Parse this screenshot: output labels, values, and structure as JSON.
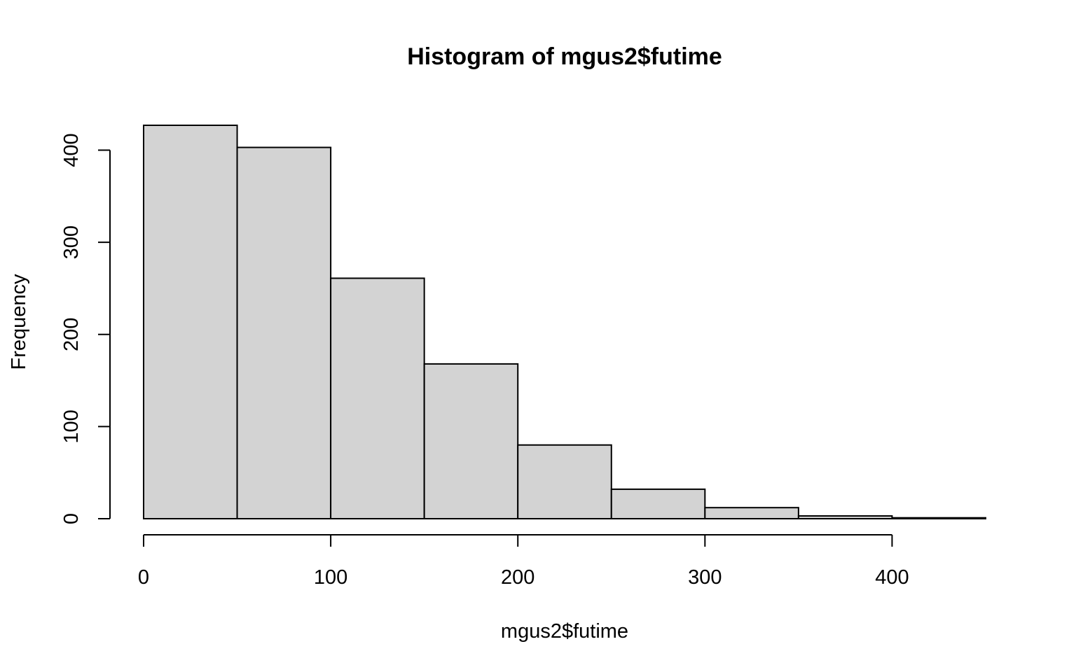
{
  "chart_data": {
    "type": "bar",
    "title": "Histogram of mgus2$futime",
    "xlabel": "mgus2$futime",
    "ylabel": "Frequency",
    "bins": [
      {
        "start": 0,
        "end": 50,
        "count": 427
      },
      {
        "start": 50,
        "end": 100,
        "count": 403
      },
      {
        "start": 100,
        "end": 150,
        "count": 261
      },
      {
        "start": 150,
        "end": 200,
        "count": 168
      },
      {
        "start": 200,
        "end": 250,
        "count": 80
      },
      {
        "start": 250,
        "end": 300,
        "count": 32
      },
      {
        "start": 300,
        "end": 350,
        "count": 12
      },
      {
        "start": 350,
        "end": 400,
        "count": 3
      },
      {
        "start": 400,
        "end": 450,
        "count": 1
      }
    ],
    "xlim": [
      0,
      450
    ],
    "ylim": [
      0,
      427
    ],
    "x_ticks": [
      "0",
      "100",
      "200",
      "300",
      "400"
    ],
    "y_ticks": [
      "0",
      "100",
      "200",
      "300",
      "400"
    ],
    "bar_color": "#d3d3d3",
    "grid": false,
    "legend": "none"
  }
}
